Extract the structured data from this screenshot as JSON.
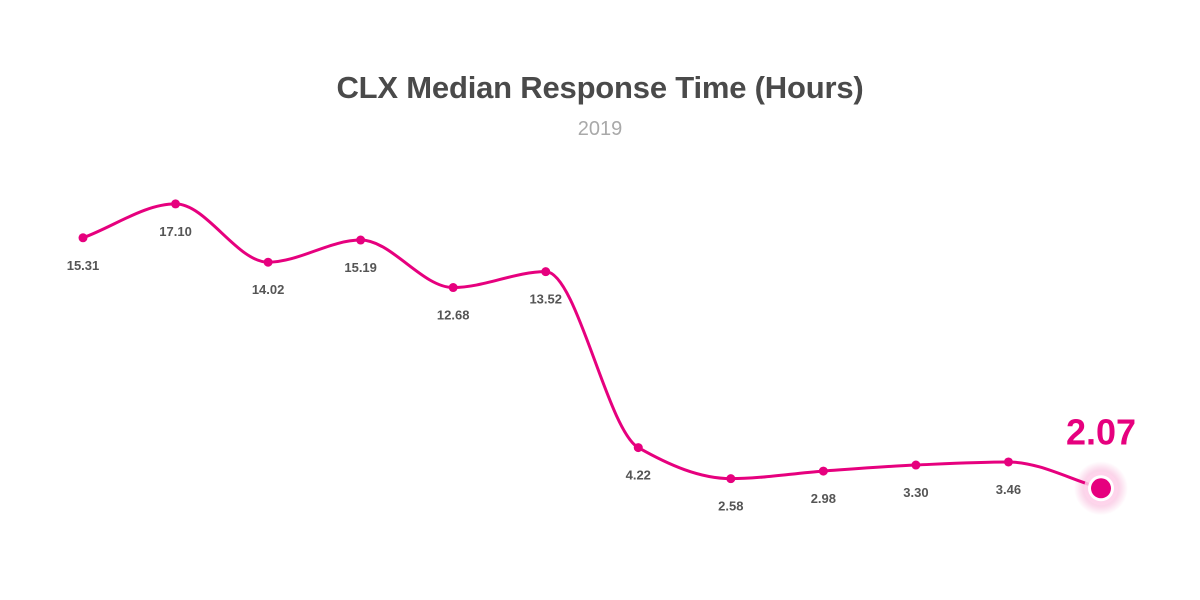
{
  "chart_data": {
    "type": "line",
    "title": "CLX Median Response Time (Hours)",
    "subtitle": "2019",
    "series": [
      {
        "values": [
          15.31,
          17.1,
          14.02,
          15.19,
          12.68,
          13.52,
          4.22,
          2.58,
          2.98,
          3.3,
          3.46,
          2.07
        ],
        "labels": [
          "15.31",
          "17.10",
          "14.02",
          "15.19",
          "12.68",
          "13.52",
          "4.22",
          "2.58",
          "2.98",
          "3.30",
          "3.46",
          "2.07"
        ]
      }
    ],
    "ylim": [
      0,
      20
    ],
    "grid": false,
    "legend": "none",
    "highlight_last": true
  },
  "colors": {
    "line": "#e6007e",
    "title": "#4a4a4a",
    "subtitle": "#a9a9a9",
    "labels": "#555555"
  }
}
